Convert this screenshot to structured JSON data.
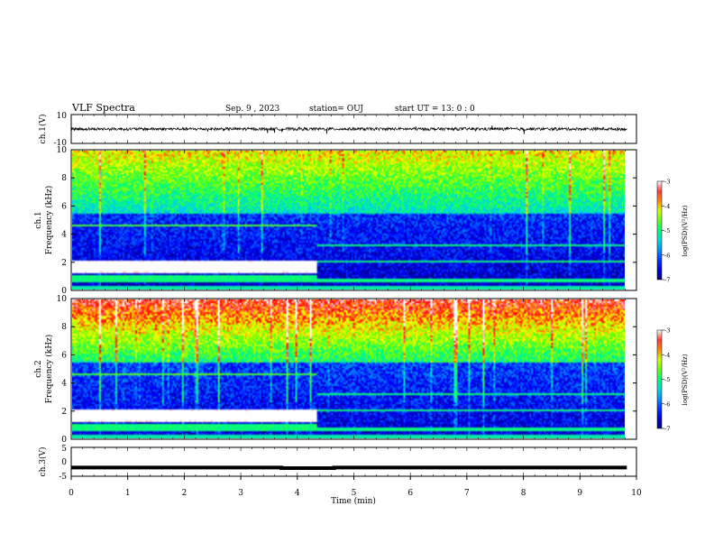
{
  "header": {
    "title": "VLF Spectra",
    "date": "Sep. 9 , 2023",
    "station": "station= OUJ",
    "start_ut": "start UT = 13: 0 : 0"
  },
  "chart_data": [
    {
      "type": "line",
      "panel": "ch1-waveform",
      "ylabel": "ch.1(V)",
      "yticks": [
        "10",
        "-10"
      ],
      "ylim": [
        -10,
        10
      ],
      "xlim": [
        0,
        10
      ],
      "description_values": {
        "level": 0,
        "noise_amplitude": 1,
        "color": "#000000"
      }
    },
    {
      "type": "heatmap",
      "panel": "ch1-spectrogram",
      "ylabel": "ch.1\nFrequency (kHz)",
      "yticks": [
        "0",
        "2",
        "4",
        "6",
        "8",
        "10"
      ],
      "ylim": [
        0,
        10
      ],
      "xlim": [
        0,
        10
      ],
      "data_end_min": 9.83,
      "regime_change_min": 4.35,
      "colorbar": {
        "label": "log(PSD)(V²/Hz)",
        "min": -7,
        "max": -3,
        "ticks": [
          "-3",
          "-4",
          "-5",
          "-6",
          "-7"
        ]
      }
    },
    {
      "type": "heatmap",
      "panel": "ch2-spectrogram",
      "ylabel": "ch.2\nFrequency (kHz)",
      "yticks": [
        "0",
        "2",
        "4",
        "6",
        "8",
        "10"
      ],
      "ylim": [
        0,
        10
      ],
      "xlim": [
        0,
        10
      ],
      "data_end_min": 9.83,
      "regime_change_min": 4.35,
      "colorbar": {
        "label": "log(PSD)(V²/Hz)",
        "min": -7,
        "max": -3,
        "ticks": [
          "-3",
          "-4",
          "-5",
          "-6",
          "-7"
        ]
      }
    },
    {
      "type": "line",
      "panel": "ch3-waveform",
      "ylabel": "ch.3(V)",
      "yticks": [
        "5",
        "0",
        "-5"
      ],
      "ylim": [
        -5,
        5
      ],
      "xlim": [
        0,
        10
      ],
      "series": [
        {
          "x": [
            0,
            3.72,
            3.72,
            4.65,
            4.65,
            9.83
          ],
          "y": [
            -2,
            -2,
            -2.2,
            -2.2,
            -2,
            -2
          ]
        }
      ]
    }
  ],
  "x_axis": {
    "label": "Time (min)",
    "ticks": [
      "0",
      "1",
      "2",
      "3",
      "4",
      "5",
      "6",
      "7",
      "8",
      "9",
      "10"
    ]
  },
  "colors": {
    "colormap": [
      "#00007f",
      "#0000ff",
      "#00ffff",
      "#00ff00",
      "#ffff00",
      "#ff0000",
      "#ffffff"
    ]
  }
}
